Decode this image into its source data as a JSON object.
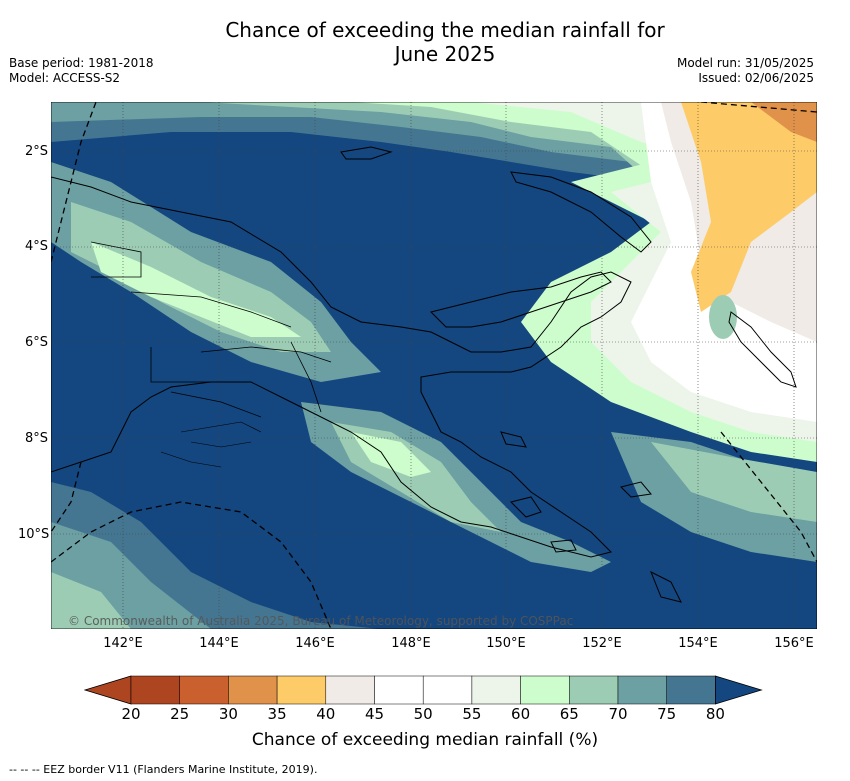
{
  "title_line1": "Chance of exceeding the median rainfall for",
  "title_line2": "June 2025",
  "base_period": "Base period: 1981-2018",
  "model": "Model: ACCESS-S2",
  "model_run": "Model run: 31/05/2025",
  "issued": "Issued: 02/06/2025",
  "copyright": "© Commonwealth of Australia 2025, Bureau of Meteorology, supported by COSPPac",
  "latitude_labels": [
    "2°S",
    "4°S",
    "6°S",
    "8°S",
    "10°S"
  ],
  "longitude_labels": [
    "142°E",
    "144°E",
    "146°E",
    "148°E",
    "150°E",
    "152°E",
    "154°E",
    "156°E"
  ],
  "colorbar": {
    "ticks": [
      "20",
      "25",
      "30",
      "35",
      "40",
      "45",
      "50",
      "55",
      "60",
      "65",
      "70",
      "75",
      "80"
    ],
    "label": "Chance of exceeding median rainfall (%)",
    "colors": [
      "#ae4521",
      "#c9602e",
      "#e0914a",
      "#fdcc68",
      "#f0ebe6",
      "#ffffff",
      "#ffffff",
      "#edf5eb",
      "#cdfdcc",
      "#9ccdb4",
      "#6ca0a3",
      "#457691",
      "#14467f"
    ],
    "under_color": "#ae4521",
    "over_color": "#14467f"
  },
  "eez_note": "--  --  -- EEZ border V11 (Flanders Marine Institute, 2019)."
}
